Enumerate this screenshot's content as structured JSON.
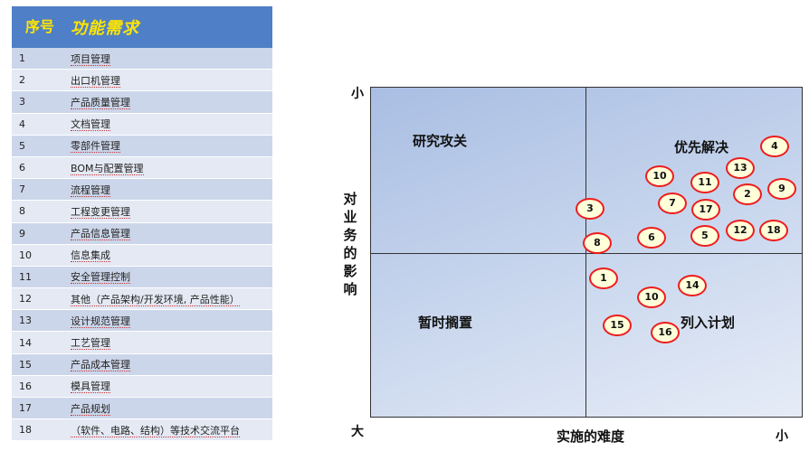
{
  "table": {
    "header": {
      "no": "序号",
      "name": "功能需求"
    },
    "rows": [
      {
        "no": "1",
        "name": "项目管理"
      },
      {
        "no": "2",
        "name": "出口机管理"
      },
      {
        "no": "3",
        "name": "产品质量管理"
      },
      {
        "no": "4",
        "name": "文档管理"
      },
      {
        "no": "5",
        "name": "零部件管理"
      },
      {
        "no": "6",
        "name": "BOM与配置管理"
      },
      {
        "no": "7",
        "name": "流程管理"
      },
      {
        "no": "8",
        "name": "工程变更管理"
      },
      {
        "no": "9",
        "name": "产品信息管理"
      },
      {
        "no": "10",
        "name": "信息集成"
      },
      {
        "no": "11",
        "name": "安全管理控制"
      },
      {
        "no": "12",
        "name": "其他（产品架构/开发环境, 产品性能）"
      },
      {
        "no": "13",
        "name": "设计规范管理"
      },
      {
        "no": "14",
        "name": "工艺管理"
      },
      {
        "no": "15",
        "name": "产品成本管理"
      },
      {
        "no": "16",
        "name": "模具管理"
      },
      {
        "no": "17",
        "name": "产品规划"
      },
      {
        "no": "18",
        "name": "（软件、电路、结构）等技术交流平台"
      }
    ]
  },
  "matrix": {
    "quadrants": {
      "top_left": "研究攻关",
      "top_right": "优先解决",
      "bottom_left": "暂时搁置",
      "bottom_right": "列入计划"
    },
    "y_axis": {
      "title": [
        "对",
        "业",
        "务",
        "的",
        "影",
        "响"
      ],
      "top": "小",
      "bottom": "大"
    },
    "x_axis": {
      "title": "实施的难度",
      "right": "小"
    },
    "items": [
      {
        "label": "4"
      },
      {
        "label": "13"
      },
      {
        "label": "10"
      },
      {
        "label": "11"
      },
      {
        "label": "2"
      },
      {
        "label": "9"
      },
      {
        "label": "7"
      },
      {
        "label": "17"
      },
      {
        "label": "3"
      },
      {
        "label": "12"
      },
      {
        "label": "18"
      },
      {
        "label": "6"
      },
      {
        "label": "5"
      },
      {
        "label": "8"
      },
      {
        "label": "1"
      },
      {
        "label": "14"
      },
      {
        "label": "10"
      },
      {
        "label": "15"
      },
      {
        "label": "16"
      }
    ],
    "colors": {
      "marker_border": "#ee1c1c",
      "marker_fill": "#ffffd9",
      "header_bg": "#4f7fc6",
      "header_text": "#ffe600"
    }
  }
}
